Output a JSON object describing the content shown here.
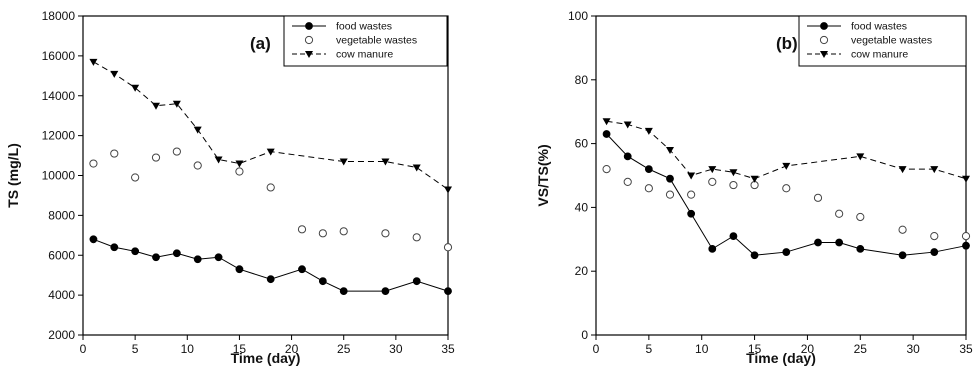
{
  "chart_data": [
    {
      "type": "line",
      "panel_label": "(a)",
      "xlabel": "Time (day)",
      "ylabel": "TS (mg/L)",
      "xlim": [
        0,
        35
      ],
      "ylim": [
        2000,
        18000
      ],
      "xticks": [
        0,
        5,
        10,
        15,
        20,
        25,
        30,
        35
      ],
      "yticks": [
        2000,
        4000,
        6000,
        8000,
        10000,
        12000,
        14000,
        16000,
        18000
      ],
      "grid": false,
      "legend_position": "top-right",
      "series": [
        {
          "name": "food wastes",
          "style": "solid-line-filled-circle",
          "x": [
            1,
            3,
            5,
            7,
            9,
            11,
            13,
            15,
            18,
            21,
            23,
            25,
            29,
            32,
            35
          ],
          "y": [
            6800,
            6400,
            6200,
            5900,
            6100,
            5800,
            5900,
            5300,
            4800,
            5300,
            4700,
            4200,
            4200,
            4700,
            4200
          ]
        },
        {
          "name": "vegetable wastes",
          "style": "markers-open-circle",
          "x": [
            1,
            3,
            5,
            7,
            9,
            11,
            15,
            18,
            21,
            23,
            25,
            29,
            32,
            35
          ],
          "y": [
            10600,
            11100,
            9900,
            10900,
            11200,
            10500,
            10200,
            9400,
            7300,
            7100,
            7200,
            7100,
            6900,
            6400
          ]
        },
        {
          "name": "cow manure",
          "style": "dashed-line-filled-triangle",
          "x": [
            1,
            3,
            5,
            7,
            9,
            11,
            13,
            15,
            18,
            25,
            29,
            32,
            35
          ],
          "y": [
            15700,
            15100,
            14400,
            13500,
            13600,
            12300,
            10800,
            10600,
            11200,
            10700,
            10700,
            10400,
            9300
          ]
        }
      ]
    },
    {
      "type": "line",
      "panel_label": "(b)",
      "xlabel": "Time (day)",
      "ylabel": "VS/TS(%)",
      "xlim": [
        0,
        35
      ],
      "ylim": [
        0,
        100
      ],
      "xticks": [
        0,
        5,
        10,
        15,
        20,
        25,
        30,
        35
      ],
      "yticks": [
        0,
        20,
        40,
        60,
        80,
        100
      ],
      "grid": false,
      "legend_position": "top-right",
      "series": [
        {
          "name": "food wastes",
          "style": "solid-line-filled-circle",
          "x": [
            1,
            3,
            5,
            7,
            9,
            11,
            13,
            15,
            18,
            21,
            23,
            25,
            29,
            32,
            35
          ],
          "y": [
            63,
            56,
            52,
            49,
            38,
            27,
            31,
            25,
            26,
            29,
            29,
            27,
            25,
            26,
            28
          ]
        },
        {
          "name": "vegetable wastes",
          "style": "markers-open-circle",
          "x": [
            1,
            3,
            5,
            7,
            9,
            11,
            13,
            15,
            18,
            21,
            23,
            25,
            29,
            32,
            35
          ],
          "y": [
            52,
            48,
            46,
            44,
            44,
            48,
            47,
            47,
            46,
            43,
            38,
            37,
            33,
            31,
            31
          ]
        },
        {
          "name": "cow manure",
          "style": "dashed-line-filled-triangle",
          "x": [
            1,
            3,
            5,
            7,
            9,
            11,
            13,
            15,
            18,
            25,
            29,
            32,
            35
          ],
          "y": [
            67,
            66,
            64,
            58,
            50,
            52,
            51,
            49,
            53,
            56,
            52,
            52,
            49
          ]
        }
      ]
    }
  ]
}
